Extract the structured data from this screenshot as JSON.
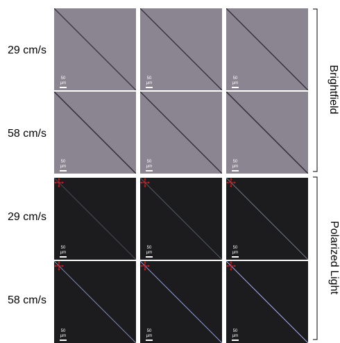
{
  "colors": {
    "brightfield_bg": "#8a8590",
    "polarized_bg": "#1c1b1e",
    "polarizer_marker": "#e01818",
    "line_brightfield": "#2e2a33"
  },
  "scale_bar_label": "50 µm",
  "groups": [
    {
      "label": "Brightfield",
      "rows": [
        {
          "label": "29 cm/s",
          "panels": [
            {
              "line": "#3c3842"
            },
            {
              "line": "#36323c"
            },
            {
              "line": "#332f39"
            }
          ]
        },
        {
          "label": "58 cm/s",
          "panels": [
            {
              "line": "#2c2831"
            },
            {
              "line": "#332f39"
            },
            {
              "line": "#2c2831"
            }
          ]
        }
      ]
    },
    {
      "label": "Polarized Light",
      "rows": [
        {
          "label": "29 cm/s",
          "panels": [
            {
              "line": "#4a4e52"
            },
            {
              "line": "#505c60"
            },
            {
              "line": "#6e7a84"
            }
          ]
        },
        {
          "label": "58 cm/s",
          "panels": [
            {
              "line": "#7a8ab0"
            },
            {
              "line": "#8f9ad8"
            },
            {
              "line": "#a6aef0"
            }
          ]
        }
      ]
    }
  ]
}
